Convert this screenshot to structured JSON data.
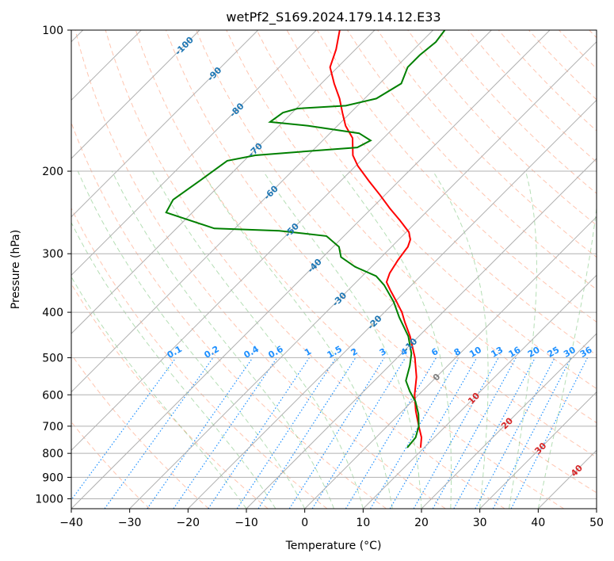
{
  "chart_data": {
    "type": "line",
    "subtype": "skew-T log-P",
    "title": "wetPf2_S169.2024.179.14.12.E33",
    "xlabel": "Temperature (°C)",
    "ylabel": "Pressure (hPa)",
    "xlim": [
      -40,
      50
    ],
    "ylim": [
      1050,
      100
    ],
    "y_scale": "log",
    "x_ticks": [
      -40,
      -30,
      -20,
      -10,
      0,
      10,
      20,
      30,
      40,
      50
    ],
    "x_tick_labels": [
      "−40",
      "−30",
      "−20",
      "−10",
      "0",
      "10",
      "20",
      "30",
      "40",
      "50"
    ],
    "y_ticks": [
      100,
      200,
      300,
      400,
      500,
      600,
      700,
      800,
      900,
      1000
    ],
    "y_tick_labels": [
      "100",
      "200",
      "300",
      "400",
      "500",
      "600",
      "700",
      "800",
      "900",
      "1000"
    ],
    "grid": true,
    "series": [
      {
        "color": "#ff0000",
        "points": [
          {
            "p": 778,
            "t": 9.4
          },
          {
            "p": 740,
            "t": 7.8
          },
          {
            "p": 700,
            "t": 5.4
          },
          {
            "p": 650,
            "t": 2.3
          },
          {
            "p": 600,
            "t": -0.7
          },
          {
            "p": 550,
            "t": -3.4
          },
          {
            "p": 500,
            "t": -7.0
          },
          {
            "p": 450,
            "t": -11.5
          },
          {
            "p": 420,
            "t": -14.8
          },
          {
            "p": 400,
            "t": -17.0
          },
          {
            "p": 380,
            "t": -19.7
          },
          {
            "p": 360,
            "t": -22.6
          },
          {
            "p": 345,
            "t": -24.8
          },
          {
            "p": 330,
            "t": -25.8
          },
          {
            "p": 310,
            "t": -26.6
          },
          {
            "p": 300,
            "t": -26.9
          },
          {
            "p": 290,
            "t": -27.2
          },
          {
            "p": 280,
            "t": -28.0
          },
          {
            "p": 270,
            "t": -29.5
          },
          {
            "p": 255,
            "t": -33.0
          },
          {
            "p": 240,
            "t": -36.9
          },
          {
            "p": 225,
            "t": -40.8
          },
          {
            "p": 210,
            "t": -45.1
          },
          {
            "p": 195,
            "t": -49.6
          },
          {
            "p": 185,
            "t": -52.3
          },
          {
            "p": 170,
            "t": -55.3
          },
          {
            "p": 160,
            "t": -58.6
          },
          {
            "p": 150,
            "t": -61.4
          },
          {
            "p": 140,
            "t": -64.3
          },
          {
            "p": 130,
            "t": -67.8
          },
          {
            "p": 120,
            "t": -71.3
          },
          {
            "p": 110,
            "t": -73.3
          },
          {
            "p": 100,
            "t": -76.0
          }
        ]
      },
      {
        "color": "#008000",
        "points": [
          {
            "p": 778,
            "t": 7.1
          },
          {
            "p": 740,
            "t": 6.8
          },
          {
            "p": 700,
            "t": 5.4
          },
          {
            "p": 660,
            "t": 3.3
          },
          {
            "p": 620,
            "t": 0.6
          },
          {
            "p": 590,
            "t": -2.1
          },
          {
            "p": 560,
            "t": -4.6
          },
          {
            "p": 520,
            "t": -6.5
          },
          {
            "p": 490,
            "t": -8.3
          },
          {
            "p": 450,
            "t": -11.8
          },
          {
            "p": 410,
            "t": -16.6
          },
          {
            "p": 380,
            "t": -20.2
          },
          {
            "p": 350,
            "t": -24.7
          },
          {
            "p": 335,
            "t": -27.6
          },
          {
            "p": 320,
            "t": -32.8
          },
          {
            "p": 305,
            "t": -36.9
          },
          {
            "p": 290,
            "t": -39.0
          },
          {
            "p": 275,
            "t": -43.0
          },
          {
            "p": 268,
            "t": -52.0
          },
          {
            "p": 265,
            "t": -63.5
          },
          {
            "p": 245,
            "t": -74.5
          },
          {
            "p": 230,
            "t": -75.5
          },
          {
            "p": 210,
            "t": -74.2
          },
          {
            "p": 190,
            "t": -72.9
          },
          {
            "p": 185,
            "t": -69.0
          },
          {
            "p": 181,
            "t": -60.0
          },
          {
            "p": 178,
            "t": -52.9
          },
          {
            "p": 172,
            "t": -51.8
          },
          {
            "p": 166,
            "t": -55.0
          },
          {
            "p": 160,
            "t": -65.0
          },
          {
            "p": 157,
            "t": -72.2
          },
          {
            "p": 150,
            "t": -71.6
          },
          {
            "p": 147,
            "t": -69.8
          },
          {
            "p": 145,
            "t": -62.0
          },
          {
            "p": 140,
            "t": -58.0
          },
          {
            "p": 130,
            "t": -56.3
          },
          {
            "p": 120,
            "t": -58.0
          },
          {
            "p": 113,
            "t": -58.0
          },
          {
            "p": 106,
            "t": -57.5
          },
          {
            "p": 100,
            "t": -58.0
          }
        ]
      }
    ],
    "isotherm_labels": [
      "-100",
      "-90",
      "-80",
      "-70",
      "-60",
      "-50",
      "-40",
      "-30",
      "-20",
      "-10",
      "0",
      "10",
      "20",
      "30",
      "40"
    ],
    "isotherm_label_values": [
      -100,
      -90,
      -80,
      -70,
      -60,
      -50,
      -40,
      -30,
      -20,
      -10,
      0,
      10,
      20,
      30,
      40
    ],
    "mixing_ratio_labels": [
      "0.1",
      "0.2",
      "0.4",
      "0.6",
      "1",
      "1.5",
      "2",
      "3",
      "4",
      "6",
      "8",
      "10",
      "13",
      "16",
      "20",
      "25",
      "30",
      "36"
    ],
    "mixing_ratio_values": [
      0.1,
      0.2,
      0.4,
      0.6,
      1,
      1.5,
      2,
      3,
      4,
      6,
      8,
      10,
      13,
      16,
      20,
      25,
      30,
      36
    ],
    "colors": {
      "isotherm_labels_cold": "#1f77b4",
      "isotherm_labels_warm": "#d62728",
      "isotherm_label_zero": "#7f7f7f",
      "mixing_ratio": "#1e90ff",
      "dry_adiabat": "#ff7f50",
      "moist_adiabat": "#2ca02c",
      "grid": "#b0b0b0"
    }
  }
}
